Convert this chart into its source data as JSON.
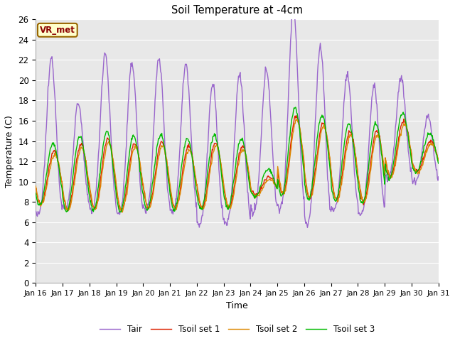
{
  "title": "Soil Temperature at -4cm",
  "xlabel": "Time",
  "ylabel": "Temperature (C)",
  "ylim": [
    0,
    26
  ],
  "annotation": "VR_met",
  "legend": [
    "Tair",
    "Tsoil set 1",
    "Tsoil set 2",
    "Tsoil set 3"
  ],
  "colors": {
    "Tair": "#9966cc",
    "Tsoil set 1": "#dd2200",
    "Tsoil set 2": "#dd8800",
    "Tsoil set 3": "#00bb00"
  },
  "xtick_labels": [
    "Jan 16",
    "Jan 17",
    "Jan 18",
    "Jan 19",
    "Jan 20",
    "Jan 21",
    "Jan 22",
    "Jan 23",
    "Jan 24",
    "Jan 25",
    "Jan 26",
    "Jan 27",
    "Jan 28",
    "Jan 29",
    "Jan 30",
    "Jan 31"
  ],
  "background_color": "#ffffff",
  "plot_bg_color": "#e8e8e8",
  "band_light": "#e8e8e8",
  "band_dark": "#d8d8d8",
  "grid_color": "#ffffff",
  "linewidth": 1.0,
  "n_days": 15,
  "pts_per_day": 48,
  "tair_peaks": [
    21.0,
    17.0,
    21.5,
    20.5,
    21.0,
    20.5,
    18.5,
    19.5,
    20.0,
    25.5,
    22.0,
    19.5,
    18.5,
    19.5,
    16.0
  ],
  "tair_troughs": [
    5.5,
    6.5,
    6.0,
    5.7,
    6.0,
    5.9,
    4.7,
    4.7,
    5.8,
    5.8,
    4.5,
    6.2,
    5.8,
    9.5,
    9.5
  ],
  "soil_peaks": [
    13.0,
    13.7,
    14.2,
    13.8,
    13.9,
    13.5,
    13.9,
    13.5,
    10.5,
    16.5,
    15.8,
    14.9,
    15.0,
    16.0,
    14.0
  ],
  "soil_troughs": [
    7.8,
    7.2,
    7.3,
    7.2,
    7.4,
    7.4,
    7.4,
    7.5,
    8.7,
    8.8,
    8.4,
    8.2,
    8.0,
    10.5,
    11.0
  ],
  "soil3_extra_amp": 1.5
}
